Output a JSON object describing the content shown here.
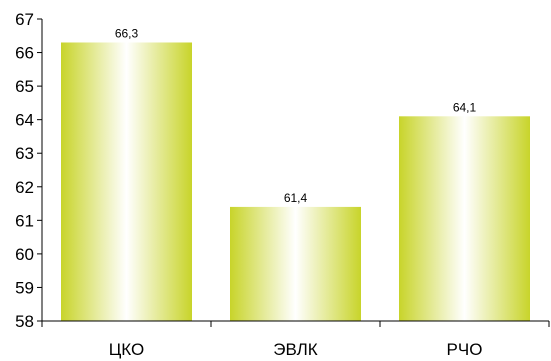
{
  "chart_data": {
    "type": "bar",
    "title": "",
    "xlabel": "",
    "ylabel": "",
    "categories": [
      "ЦКО",
      "ЭВЛК",
      "РЧО"
    ],
    "values": [
      66.3,
      61.4,
      64.1
    ],
    "value_labels": [
      "66,3",
      "61,4",
      "64,1"
    ],
    "ylim": [
      58,
      67
    ],
    "y_ticks": [
      58,
      59,
      60,
      61,
      62,
      63,
      64,
      65,
      66,
      67
    ],
    "grid": false,
    "legend": "none",
    "bar_colors": {
      "edge": "#c8d42a",
      "center": "#ffffff"
    }
  }
}
